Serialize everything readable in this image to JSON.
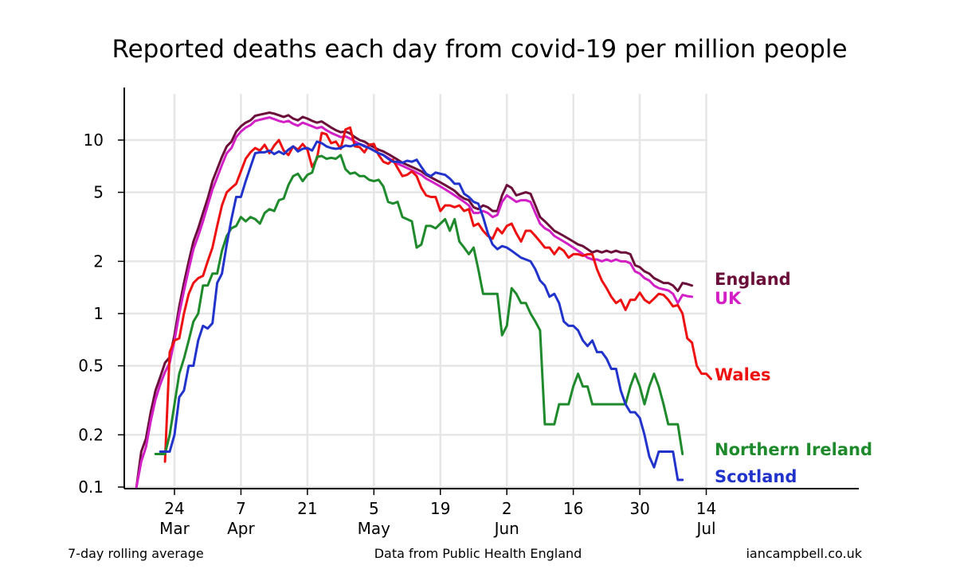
{
  "footer": {
    "left": "7-day rolling average",
    "center": "Data from Public Health England",
    "right": "iancampbell.co.uk"
  },
  "chart_data": {
    "type": "line",
    "title": "Reported deaths each day from covid-19 per million people",
    "y_scale": "log",
    "ylim": [
      0.1,
      20
    ],
    "y_ticks": [
      {
        "value": 0.1,
        "label": "0.1"
      },
      {
        "value": 0.2,
        "label": "0.2"
      },
      {
        "value": 0.5,
        "label": "0.5"
      },
      {
        "value": 1,
        "label": "1"
      },
      {
        "value": 2,
        "label": "2"
      },
      {
        "value": 5,
        "label": "5"
      },
      {
        "value": 10,
        "label": "10"
      }
    ],
    "x_ticks": [
      {
        "date": "2020-03-24",
        "day": "24",
        "month": "Mar"
      },
      {
        "date": "2020-04-07",
        "day": "7",
        "month": "Apr"
      },
      {
        "date": "2020-04-21",
        "day": "21",
        "month": ""
      },
      {
        "date": "2020-05-05",
        "day": "5",
        "month": "May"
      },
      {
        "date": "2020-05-19",
        "day": "19",
        "month": ""
      },
      {
        "date": "2020-06-02",
        "day": "2",
        "month": "Jun"
      },
      {
        "date": "2020-06-16",
        "day": "16",
        "month": ""
      },
      {
        "date": "2020-06-30",
        "day": "30",
        "month": ""
      },
      {
        "date": "2020-07-14",
        "day": "14",
        "month": "Jul"
      }
    ],
    "grid": true,
    "series": [
      {
        "name": "England",
        "color": "#6b0f3a",
        "x_start": "2020-03-16",
        "values": [
          0.1,
          0.16,
          0.19,
          0.27,
          0.36,
          0.43,
          0.52,
          0.56,
          0.75,
          1.1,
          1.5,
          2.0,
          2.6,
          3.1,
          3.8,
          4.6,
          5.8,
          6.8,
          8.0,
          9.2,
          9.8,
          11.2,
          12.0,
          12.6,
          13.0,
          13.8,
          14.0,
          14.2,
          14.4,
          14.2,
          13.9,
          13.6,
          13.9,
          13.3,
          13.0,
          13.6,
          13.3,
          12.9,
          12.6,
          12.8,
          12.3,
          11.8,
          11.4,
          11.1,
          11.2,
          10.9,
          10.4,
          10.0,
          9.8,
          9.4,
          9.1,
          8.8,
          8.6,
          8.3,
          8.0,
          7.7,
          7.4,
          7.2,
          7.0,
          6.8,
          6.6,
          6.3,
          6.1,
          5.9,
          5.7,
          5.5,
          5.3,
          5.1,
          4.8,
          4.6,
          4.5,
          4.1,
          4.0,
          4.2,
          4.1,
          3.9,
          3.9,
          4.8,
          5.5,
          5.3,
          4.8,
          4.9,
          5.0,
          4.9,
          4.2,
          3.6,
          3.4,
          3.2,
          3.0,
          2.9,
          2.8,
          2.7,
          2.6,
          2.5,
          2.45,
          2.35,
          2.25,
          2.3,
          2.25,
          2.3,
          2.25,
          2.3,
          2.25,
          2.25,
          2.2,
          1.9,
          1.85,
          1.75,
          1.7,
          1.6,
          1.55,
          1.5,
          1.5,
          1.45,
          1.35,
          1.5,
          1.48,
          1.45
        ]
      },
      {
        "name": "UK",
        "color": "#d21fc6",
        "x_start": "2020-03-16",
        "values": [
          0.1,
          0.14,
          0.17,
          0.24,
          0.32,
          0.39,
          0.46,
          0.52,
          0.7,
          1.0,
          1.35,
          1.8,
          2.35,
          2.8,
          3.4,
          4.2,
          5.2,
          6.1,
          7.2,
          8.4,
          9.0,
          10.4,
          11.2,
          11.8,
          12.2,
          12.9,
          13.1,
          13.3,
          13.5,
          13.2,
          12.9,
          12.7,
          12.9,
          12.4,
          12.1,
          12.6,
          12.3,
          12.0,
          11.7,
          11.9,
          11.4,
          11.0,
          10.7,
          10.4,
          10.5,
          10.2,
          9.8,
          9.5,
          9.3,
          9.0,
          8.7,
          8.4,
          8.2,
          7.9,
          7.6,
          7.3,
          7.1,
          6.9,
          6.7,
          6.5,
          6.3,
          6.0,
          5.8,
          5.6,
          5.4,
          5.2,
          5.0,
          4.8,
          4.6,
          4.4,
          4.2,
          3.8,
          3.8,
          3.9,
          3.8,
          3.6,
          3.7,
          4.4,
          4.8,
          4.6,
          4.4,
          4.5,
          4.5,
          4.4,
          3.8,
          3.3,
          3.1,
          3.0,
          2.8,
          2.7,
          2.6,
          2.5,
          2.4,
          2.3,
          2.2,
          2.1,
          2.05,
          2.05,
          2.0,
          2.05,
          2.0,
          2.05,
          2.0,
          2.0,
          1.95,
          1.75,
          1.7,
          1.6,
          1.55,
          1.45,
          1.4,
          1.38,
          1.36,
          1.3,
          1.15,
          1.28,
          1.26,
          1.25
        ]
      },
      {
        "name": "Wales",
        "color": "#ee1111",
        "x_start": "2020-03-22",
        "values": [
          0.14,
          0.6,
          0.7,
          0.72,
          1.0,
          1.3,
          1.5,
          1.6,
          1.65,
          2.0,
          2.4,
          3.2,
          4.2,
          5.0,
          5.3,
          5.6,
          6.6,
          7.8,
          8.5,
          9.0,
          8.7,
          9.4,
          8.4,
          9.3,
          10.0,
          8.7,
          8.2,
          9.2,
          8.8,
          9.5,
          8.8,
          7.0,
          7.8,
          11.0,
          10.8,
          9.6,
          9.8,
          8.9,
          11.5,
          11.8,
          9.2,
          9.1,
          8.5,
          9.4,
          9.5,
          8.2,
          7.5,
          7.3,
          7.7,
          6.9,
          6.2,
          6.3,
          6.6,
          6.2,
          5.3,
          4.8,
          4.7,
          4.7,
          3.9,
          4.2,
          4.2,
          4.1,
          4.2,
          3.9,
          4.0,
          3.2,
          3.3,
          3.0,
          2.8,
          2.7,
          3.1,
          2.9,
          3.2,
          3.3,
          2.9,
          2.6,
          3.0,
          3.0,
          2.8,
          2.6,
          2.4,
          2.4,
          2.2,
          2.4,
          2.3,
          2.1,
          2.2,
          2.2,
          2.15,
          2.2,
          2.2,
          1.8,
          1.55,
          1.4,
          1.25,
          1.15,
          1.2,
          1.05,
          1.2,
          1.2,
          1.32,
          1.2,
          1.15,
          1.22,
          1.3,
          1.28,
          1.2,
          1.1,
          1.12,
          1.0,
          0.72,
          0.68,
          0.5,
          0.45,
          0.45,
          0.42
        ]
      },
      {
        "name": "Northern Ireland",
        "color": "#1e8a2c",
        "x_start": "2020-03-20",
        "values": [
          0.155,
          0.155,
          0.155,
          0.2,
          0.3,
          0.45,
          0.55,
          0.7,
          0.9,
          1.0,
          1.45,
          1.45,
          1.7,
          1.7,
          2.3,
          2.8,
          3.1,
          3.2,
          3.6,
          3.4,
          3.6,
          3.5,
          3.3,
          3.8,
          4.0,
          3.9,
          4.5,
          4.6,
          5.5,
          6.2,
          6.4,
          5.8,
          6.3,
          6.5,
          8.0,
          8.1,
          7.8,
          7.9,
          7.8,
          8.2,
          6.8,
          6.4,
          6.5,
          6.2,
          6.2,
          5.9,
          5.8,
          5.9,
          5.4,
          4.4,
          4.3,
          4.4,
          3.6,
          3.5,
          3.4,
          2.4,
          2.5,
          3.2,
          3.2,
          3.1,
          3.3,
          3.5,
          3.0,
          3.5,
          2.6,
          2.4,
          2.2,
          2.4,
          1.8,
          1.3,
          1.3,
          1.3,
          1.3,
          0.75,
          0.85,
          1.4,
          1.3,
          1.15,
          1.15,
          1.0,
          0.9,
          0.8,
          0.23,
          0.23,
          0.23,
          0.3,
          0.3,
          0.3,
          0.38,
          0.45,
          0.38,
          0.38,
          0.3,
          0.3,
          0.3,
          0.3,
          0.3,
          0.3,
          0.3,
          0.3,
          0.38,
          0.45,
          0.38,
          0.3,
          0.38,
          0.45,
          0.38,
          0.3,
          0.23,
          0.23,
          0.23,
          0.155
        ]
      },
      {
        "name": "Scotland",
        "color": "#2233cc",
        "x_start": "2020-03-21",
        "values": [
          0.16,
          0.16,
          0.16,
          0.2,
          0.33,
          0.36,
          0.5,
          0.5,
          0.7,
          0.85,
          0.82,
          0.88,
          1.5,
          1.7,
          2.5,
          3.5,
          4.7,
          4.7,
          5.8,
          7.0,
          8.4,
          8.5,
          8.5,
          8.7,
          8.3,
          8.6,
          8.3,
          8.8,
          9.2,
          8.6,
          8.9,
          9.0,
          8.7,
          9.8,
          9.6,
          9.2,
          9.0,
          8.9,
          9.0,
          9.3,
          9.2,
          9.4,
          9.5,
          9.2,
          9.0,
          8.7,
          8.4,
          8.2,
          7.8,
          7.5,
          7.5,
          7.4,
          7.6,
          7.5,
          7.7,
          7.0,
          6.4,
          6.2,
          6.5,
          6.4,
          6.3,
          6.0,
          5.6,
          5.6,
          4.9,
          4.7,
          4.4,
          4.3,
          3.6,
          2.9,
          2.5,
          2.35,
          2.45,
          2.4,
          2.3,
          2.2,
          2.1,
          2.05,
          2.0,
          1.8,
          1.55,
          1.45,
          1.25,
          1.3,
          1.15,
          0.9,
          0.85,
          0.85,
          0.8,
          0.7,
          0.65,
          0.7,
          0.6,
          0.6,
          0.55,
          0.48,
          0.48,
          0.36,
          0.3,
          0.27,
          0.27,
          0.25,
          0.2,
          0.15,
          0.13,
          0.16,
          0.16,
          0.16,
          0.16,
          0.11,
          0.11
        ]
      }
    ],
    "end_labels": [
      {
        "name": "England",
        "y": 1.45
      },
      {
        "name": "UK",
        "y": 1.2
      },
      {
        "name": "Wales",
        "y": 0.42
      },
      {
        "name": "Northern Ireland",
        "y": 0.155
      },
      {
        "name": "Scotland",
        "y": 0.11
      }
    ]
  }
}
